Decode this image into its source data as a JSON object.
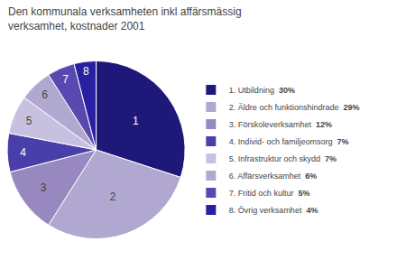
{
  "chart_data": {
    "type": "pie",
    "title": "Den kommunala verksamheten inkl affärsmässig\nverksamhet, kostnader 2001",
    "categories": [
      "1. Utbildning",
      "2. Äldre och funktionshindrade",
      "3. Förskoleverksamhet",
      "4. Individ- och familjeomsorg",
      "5. Infrastruktur och skydd",
      "6. Affärsverksamhet",
      "7. Fritid och kultur",
      "8. Övrig verksamhet"
    ],
    "values": [
      30,
      29,
      12,
      7,
      7,
      6,
      5,
      4
    ],
    "value_labels": [
      "30%",
      "29%",
      "12%",
      "7%",
      "7%",
      "6%",
      "5%",
      "4%"
    ],
    "slice_labels": [
      "1",
      "2",
      "3",
      "4",
      "5",
      "6",
      "7",
      "8"
    ],
    "colors": [
      "#1e1878",
      "#b0a8d0",
      "#9888c0",
      "#4840a8",
      "#c8c0e0",
      "#b0a8d0",
      "#5848b0",
      "#2820a0"
    ],
    "legend": "right"
  }
}
